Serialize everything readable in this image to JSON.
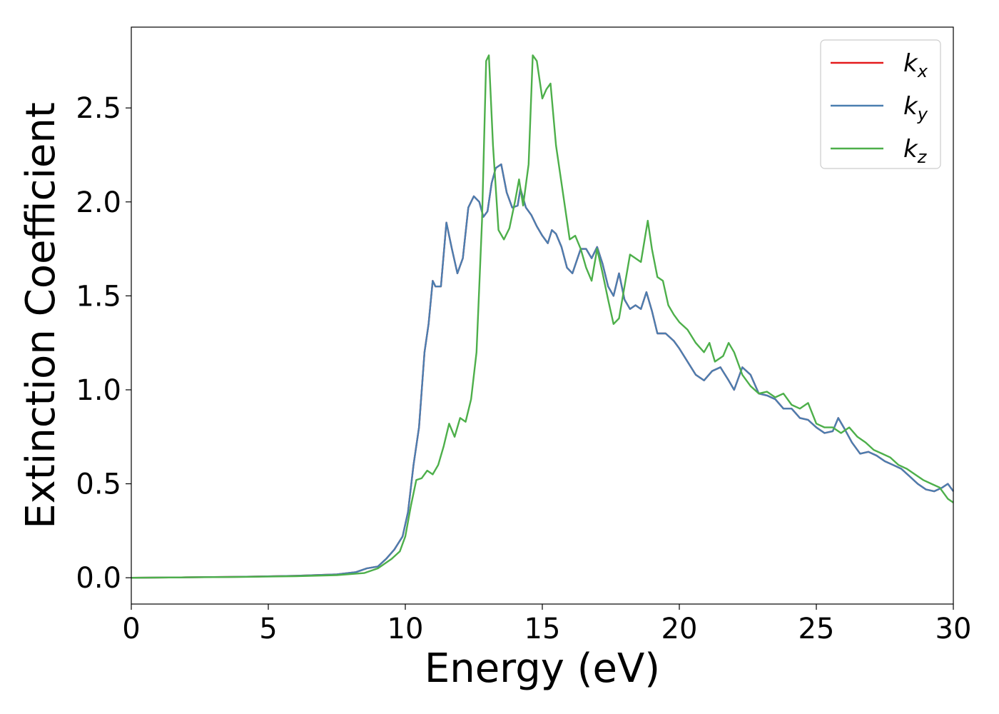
{
  "chart_data": {
    "type": "line",
    "title": "",
    "xlabel": "Energy (eV)",
    "ylabel": "Extinction Coefficient",
    "xlim": [
      0,
      30
    ],
    "ylim": [
      -0.14,
      2.93
    ],
    "xticks": [
      0,
      5,
      10,
      15,
      20,
      25,
      30
    ],
    "xtick_labels": [
      "0",
      "5",
      "10",
      "15",
      "20",
      "25",
      "30"
    ],
    "yticks": [
      0.0,
      0.5,
      1.0,
      1.5,
      2.0,
      2.5
    ],
    "ytick_labels": [
      "0.0",
      "0.5",
      "1.0",
      "1.5",
      "2.0",
      "2.5"
    ],
    "grid": false,
    "legend_position": "top-right",
    "series": [
      {
        "name": "k",
        "subscript": "x",
        "color": "#e41a1c",
        "x": [
          0,
          2,
          4,
          6,
          7.5,
          8.2,
          8.6,
          9.0,
          9.3,
          9.6,
          9.9,
          10.1,
          10.3,
          10.5,
          10.7,
          10.85,
          11.0,
          11.1,
          11.3,
          11.5,
          11.7,
          11.9,
          12.1,
          12.3,
          12.5,
          12.7,
          12.85,
          13.0,
          13.15,
          13.3,
          13.5,
          13.7,
          13.9,
          14.1,
          14.2,
          14.4,
          14.6,
          14.8,
          15.0,
          15.2,
          15.35,
          15.5,
          15.7,
          15.9,
          16.1,
          16.4,
          16.6,
          16.8,
          17.0,
          17.2,
          17.4,
          17.6,
          17.8,
          18.0,
          18.2,
          18.4,
          18.6,
          18.8,
          19.0,
          19.2,
          19.5,
          19.8,
          20.0,
          20.3,
          20.6,
          20.9,
          21.2,
          21.5,
          21.8,
          22.0,
          22.3,
          22.6,
          22.9,
          23.2,
          23.5,
          23.8,
          24.1,
          24.4,
          24.7,
          25.0,
          25.3,
          25.6,
          25.8,
          26.0,
          26.3,
          26.6,
          26.9,
          27.2,
          27.5,
          27.8,
          28.1,
          28.4,
          28.7,
          29.0,
          29.3,
          29.6,
          29.8,
          30
        ],
        "y": [
          0,
          0.002,
          0.005,
          0.01,
          0.018,
          0.03,
          0.05,
          0.06,
          0.1,
          0.15,
          0.22,
          0.35,
          0.6,
          0.8,
          1.2,
          1.35,
          1.58,
          1.55,
          1.55,
          1.89,
          1.75,
          1.62,
          1.7,
          1.97,
          2.03,
          2.0,
          1.92,
          1.95,
          2.1,
          2.18,
          2.2,
          2.05,
          1.97,
          1.98,
          2.07,
          1.97,
          1.93,
          1.87,
          1.82,
          1.78,
          1.85,
          1.83,
          1.76,
          1.65,
          1.62,
          1.75,
          1.75,
          1.7,
          1.76,
          1.67,
          1.55,
          1.5,
          1.62,
          1.48,
          1.43,
          1.45,
          1.43,
          1.52,
          1.42,
          1.3,
          1.3,
          1.26,
          1.22,
          1.15,
          1.08,
          1.05,
          1.1,
          1.12,
          1.05,
          1.0,
          1.12,
          1.08,
          0.98,
          0.97,
          0.95,
          0.9,
          0.9,
          0.85,
          0.84,
          0.8,
          0.77,
          0.78,
          0.85,
          0.8,
          0.72,
          0.66,
          0.67,
          0.65,
          0.62,
          0.6,
          0.58,
          0.54,
          0.5,
          0.47,
          0.46,
          0.48,
          0.5,
          0.46
        ]
      },
      {
        "name": "k",
        "subscript": "y",
        "color": "#4a7eb0",
        "x": [
          0,
          2,
          4,
          6,
          7.5,
          8.2,
          8.6,
          9.0,
          9.3,
          9.6,
          9.9,
          10.1,
          10.3,
          10.5,
          10.7,
          10.85,
          11.0,
          11.1,
          11.3,
          11.5,
          11.7,
          11.9,
          12.1,
          12.3,
          12.5,
          12.7,
          12.85,
          13.0,
          13.15,
          13.3,
          13.5,
          13.7,
          13.9,
          14.1,
          14.2,
          14.4,
          14.6,
          14.8,
          15.0,
          15.2,
          15.35,
          15.5,
          15.7,
          15.9,
          16.1,
          16.4,
          16.6,
          16.8,
          17.0,
          17.2,
          17.4,
          17.6,
          17.8,
          18.0,
          18.2,
          18.4,
          18.6,
          18.8,
          19.0,
          19.2,
          19.5,
          19.8,
          20.0,
          20.3,
          20.6,
          20.9,
          21.2,
          21.5,
          21.8,
          22.0,
          22.3,
          22.6,
          22.9,
          23.2,
          23.5,
          23.8,
          24.1,
          24.4,
          24.7,
          25.0,
          25.3,
          25.6,
          25.8,
          26.0,
          26.3,
          26.6,
          26.9,
          27.2,
          27.5,
          27.8,
          28.1,
          28.4,
          28.7,
          29.0,
          29.3,
          29.6,
          29.8,
          30
        ],
        "y": [
          0,
          0.002,
          0.005,
          0.01,
          0.018,
          0.03,
          0.05,
          0.06,
          0.1,
          0.15,
          0.22,
          0.35,
          0.6,
          0.8,
          1.2,
          1.35,
          1.58,
          1.55,
          1.55,
          1.89,
          1.75,
          1.62,
          1.7,
          1.97,
          2.03,
          2.0,
          1.92,
          1.95,
          2.1,
          2.18,
          2.2,
          2.05,
          1.97,
          1.98,
          2.07,
          1.97,
          1.93,
          1.87,
          1.82,
          1.78,
          1.85,
          1.83,
          1.76,
          1.65,
          1.62,
          1.75,
          1.75,
          1.7,
          1.76,
          1.67,
          1.55,
          1.5,
          1.62,
          1.48,
          1.43,
          1.45,
          1.43,
          1.52,
          1.42,
          1.3,
          1.3,
          1.26,
          1.22,
          1.15,
          1.08,
          1.05,
          1.1,
          1.12,
          1.05,
          1.0,
          1.12,
          1.08,
          0.98,
          0.97,
          0.95,
          0.9,
          0.9,
          0.85,
          0.84,
          0.8,
          0.77,
          0.78,
          0.85,
          0.8,
          0.72,
          0.66,
          0.67,
          0.65,
          0.62,
          0.6,
          0.58,
          0.54,
          0.5,
          0.47,
          0.46,
          0.48,
          0.5,
          0.46
        ]
      },
      {
        "name": "k",
        "subscript": "z",
        "color": "#4daf4a",
        "x": [
          0,
          2,
          4,
          6,
          7.5,
          8.5,
          9.0,
          9.5,
          9.8,
          10.0,
          10.2,
          10.4,
          10.6,
          10.8,
          11.0,
          11.2,
          11.4,
          11.6,
          11.8,
          12.0,
          12.2,
          12.4,
          12.6,
          12.8,
          12.95,
          13.05,
          13.2,
          13.4,
          13.6,
          13.8,
          14.0,
          14.15,
          14.3,
          14.5,
          14.65,
          14.8,
          15.0,
          15.15,
          15.3,
          15.5,
          15.7,
          16.0,
          16.2,
          16.4,
          16.6,
          16.8,
          17.0,
          17.2,
          17.4,
          17.6,
          17.8,
          18.0,
          18.2,
          18.4,
          18.6,
          18.85,
          19.0,
          19.2,
          19.4,
          19.6,
          19.8,
          20.0,
          20.3,
          20.6,
          20.9,
          21.1,
          21.3,
          21.6,
          21.8,
          22.0,
          22.3,
          22.6,
          22.9,
          23.2,
          23.5,
          23.8,
          24.1,
          24.4,
          24.7,
          25.0,
          25.3,
          25.6,
          25.9,
          26.2,
          26.5,
          26.8,
          27.1,
          27.4,
          27.7,
          28.0,
          28.3,
          28.6,
          28.9,
          29.2,
          29.5,
          29.8,
          30
        ],
        "y": [
          0,
          0.002,
          0.004,
          0.008,
          0.014,
          0.025,
          0.05,
          0.1,
          0.14,
          0.22,
          0.38,
          0.52,
          0.53,
          0.57,
          0.55,
          0.6,
          0.7,
          0.82,
          0.75,
          0.85,
          0.83,
          0.95,
          1.2,
          1.9,
          2.75,
          2.78,
          2.3,
          1.85,
          1.8,
          1.86,
          2.0,
          2.12,
          1.98,
          2.2,
          2.78,
          2.75,
          2.55,
          2.6,
          2.63,
          2.3,
          2.1,
          1.8,
          1.82,
          1.75,
          1.65,
          1.58,
          1.75,
          1.62,
          1.48,
          1.35,
          1.38,
          1.55,
          1.72,
          1.7,
          1.68,
          1.9,
          1.75,
          1.6,
          1.58,
          1.45,
          1.4,
          1.36,
          1.32,
          1.25,
          1.2,
          1.25,
          1.15,
          1.18,
          1.25,
          1.2,
          1.08,
          1.02,
          0.98,
          0.99,
          0.96,
          0.98,
          0.92,
          0.9,
          0.93,
          0.82,
          0.8,
          0.8,
          0.77,
          0.8,
          0.75,
          0.72,
          0.68,
          0.66,
          0.64,
          0.6,
          0.58,
          0.55,
          0.52,
          0.5,
          0.48,
          0.42,
          0.4
        ]
      }
    ]
  }
}
